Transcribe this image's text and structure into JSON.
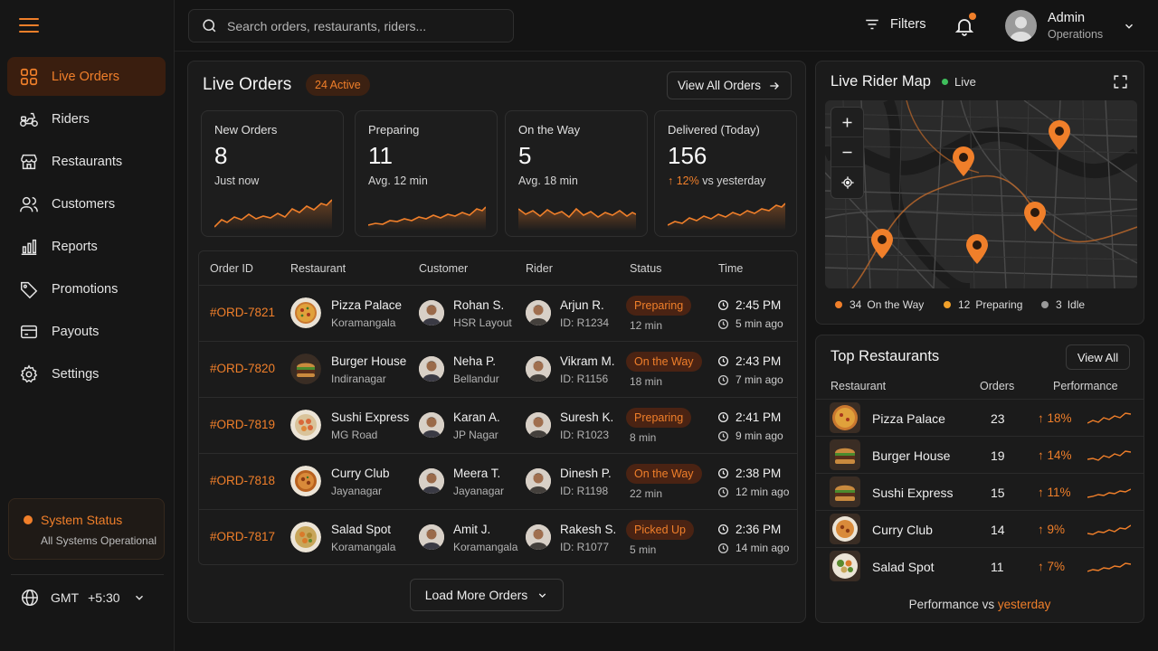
{
  "search": {
    "placeholder": "Search orders, restaurants, riders..."
  },
  "header": {
    "filters_label": "Filters",
    "user_name": "Admin",
    "user_role": "Operations"
  },
  "sidebar": {
    "items": [
      {
        "label": "Live Orders",
        "icon": "grid-icon",
        "active": true
      },
      {
        "label": "Riders",
        "icon": "scooter-icon"
      },
      {
        "label": "Restaurants",
        "icon": "store-icon"
      },
      {
        "label": "Customers",
        "icon": "users-icon"
      },
      {
        "label": "Reports",
        "icon": "bar-chart-icon"
      },
      {
        "label": "Promotions",
        "icon": "tag-icon"
      },
      {
        "label": "Payouts",
        "icon": "card-icon"
      },
      {
        "label": "Settings",
        "icon": "gear-icon"
      }
    ],
    "system_status": {
      "title": "System Status",
      "detail": "All Systems Operational"
    },
    "timezone": {
      "label": "GMT",
      "offset": "+5:30"
    }
  },
  "live_orders": {
    "title": "Live Orders",
    "active_badge": "24 Active",
    "view_all_label": "View All Orders",
    "stats": [
      {
        "label": "New Orders",
        "value": "8",
        "sub": "Just now"
      },
      {
        "label": "Preparing",
        "value": "11",
        "sub": "Avg. 12 min"
      },
      {
        "label": "On the Way",
        "value": "5",
        "sub": "Avg. 18 min"
      },
      {
        "label": "Delivered (Today)",
        "value": "156",
        "sub_pct": "12%",
        "sub_rest": "vs yesterday"
      }
    ],
    "columns": [
      "Order ID",
      "Restaurant",
      "Customer",
      "Rider",
      "Status",
      "Time"
    ],
    "rows": [
      {
        "order_id": "#ORD-7821",
        "restaurant": "Pizza Palace",
        "restaurant_area": "Koramangala",
        "customer": "Rohan S.",
        "customer_area": "HSR Layout",
        "rider": "Arjun R.",
        "rider_id": "ID: R1234",
        "status": "Preparing",
        "status_time": "12 min",
        "time": "2:45 PM",
        "ago": "5 min ago"
      },
      {
        "order_id": "#ORD-7820",
        "restaurant": "Burger House",
        "restaurant_area": "Indiranagar",
        "customer": "Neha P.",
        "customer_area": "Bellandur",
        "rider": "Vikram M.",
        "rider_id": "ID: R1156",
        "status": "On the Way",
        "status_time": "18 min",
        "time": "2:43 PM",
        "ago": "7 min ago"
      },
      {
        "order_id": "#ORD-7819",
        "restaurant": "Sushi Express",
        "restaurant_area": "MG Road",
        "customer": "Karan A.",
        "customer_area": "JP Nagar",
        "rider": "Suresh K.",
        "rider_id": "ID: R1023",
        "status": "Preparing",
        "status_time": "8 min",
        "time": "2:41 PM",
        "ago": "9 min ago"
      },
      {
        "order_id": "#ORD-7818",
        "restaurant": "Curry Club",
        "restaurant_area": "Jayanagar",
        "customer": "Meera T.",
        "customer_area": "Jayanagar",
        "rider": "Dinesh P.",
        "rider_id": "ID: R1198",
        "status": "On the Way",
        "status_time": "22 min",
        "time": "2:38 PM",
        "ago": "12 min ago"
      },
      {
        "order_id": "#ORD-7817",
        "restaurant": "Salad Spot",
        "restaurant_area": "Koramangala",
        "customer": "Amit J.",
        "customer_area": "Koramangala",
        "rider": "Rakesh S.",
        "rider_id": "ID: R1077",
        "status": "Picked Up",
        "status_time": "5 min",
        "time": "2:36 PM",
        "ago": "14 min ago"
      }
    ],
    "load_more_label": "Load More Orders"
  },
  "rider_map": {
    "title": "Live Rider Map",
    "live_label": "Live",
    "legend": [
      {
        "count": "34",
        "label": "On the Way",
        "color": "#f07f2a"
      },
      {
        "count": "12",
        "label": "Preparing",
        "color": "#f0a02a"
      },
      {
        "count": "3",
        "label": "Idle",
        "color": "#9a9a9a"
      }
    ]
  },
  "top_restaurants": {
    "title": "Top Restaurants",
    "view_all_label": "View All",
    "columns": [
      "Restaurant",
      "Orders",
      "Performance"
    ],
    "rows": [
      {
        "name": "Pizza Palace",
        "orders": "23",
        "perf": "18%"
      },
      {
        "name": "Burger House",
        "orders": "19",
        "perf": "14%"
      },
      {
        "name": "Sushi Express",
        "orders": "15",
        "perf": "11%"
      },
      {
        "name": "Curry Club",
        "orders": "14",
        "perf": "9%"
      },
      {
        "name": "Salad Spot",
        "orders": "11",
        "perf": "7%"
      }
    ],
    "footer_prefix": "Performance vs",
    "footer_highlight": "yesterday"
  },
  "colors": {
    "accent": "#f07f2a",
    "background": "#141414",
    "panel": "#1b1b1b",
    "live": "#3fbf5c"
  }
}
